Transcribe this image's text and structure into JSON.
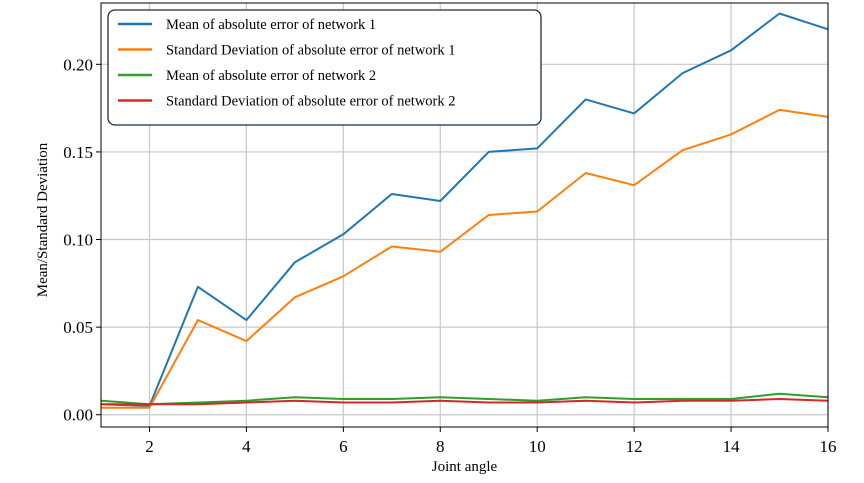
{
  "chart_data": {
    "type": "line",
    "title": "",
    "xlabel": "Joint angle",
    "ylabel": "Mean/Standard Deviation",
    "x": [
      1,
      2,
      3,
      4,
      5,
      6,
      7,
      8,
      9,
      10,
      11,
      12,
      13,
      14,
      15,
      16
    ],
    "xlim": [
      1,
      16
    ],
    "ylim": [
      -0.007,
      0.235
    ],
    "xticks": [
      2,
      4,
      6,
      8,
      10,
      12,
      14,
      16
    ],
    "xtick_labels": [
      "2",
      "4",
      "6",
      "8",
      "10",
      "12",
      "14",
      "16"
    ],
    "yticks": [
      0.0,
      0.05,
      0.1,
      0.15,
      0.2
    ],
    "ytick_labels": [
      "0.00",
      "0.05",
      "0.10",
      "0.15",
      "0.20"
    ],
    "grid": true,
    "legend_position": "top-left",
    "series": [
      {
        "name": "Mean of absolute error of network 1",
        "color": "#1f77b4",
        "values": [
          0.006,
          0.005,
          0.073,
          0.054,
          0.087,
          0.103,
          0.126,
          0.122,
          0.15,
          0.152,
          0.18,
          0.172,
          0.195,
          0.208,
          0.229,
          0.22
        ]
      },
      {
        "name": "Standard Deviation of absolute error of network 1",
        "color": "#ff7f0e",
        "values": [
          0.004,
          0.004,
          0.054,
          0.042,
          0.067,
          0.079,
          0.096,
          0.093,
          0.114,
          0.116,
          0.138,
          0.131,
          0.151,
          0.16,
          0.174,
          0.17
        ]
      },
      {
        "name": "Mean of absolute error of network 2",
        "color": "#2ca02c",
        "values": [
          0.008,
          0.006,
          0.007,
          0.008,
          0.01,
          0.009,
          0.009,
          0.01,
          0.009,
          0.008,
          0.01,
          0.009,
          0.009,
          0.009,
          0.012,
          0.01
        ]
      },
      {
        "name": "Standard Deviation of absolute error of network 2",
        "color": "#d62728",
        "values": [
          0.006,
          0.006,
          0.006,
          0.007,
          0.008,
          0.007,
          0.007,
          0.008,
          0.007,
          0.007,
          0.008,
          0.007,
          0.008,
          0.008,
          0.009,
          0.008
        ]
      }
    ]
  }
}
